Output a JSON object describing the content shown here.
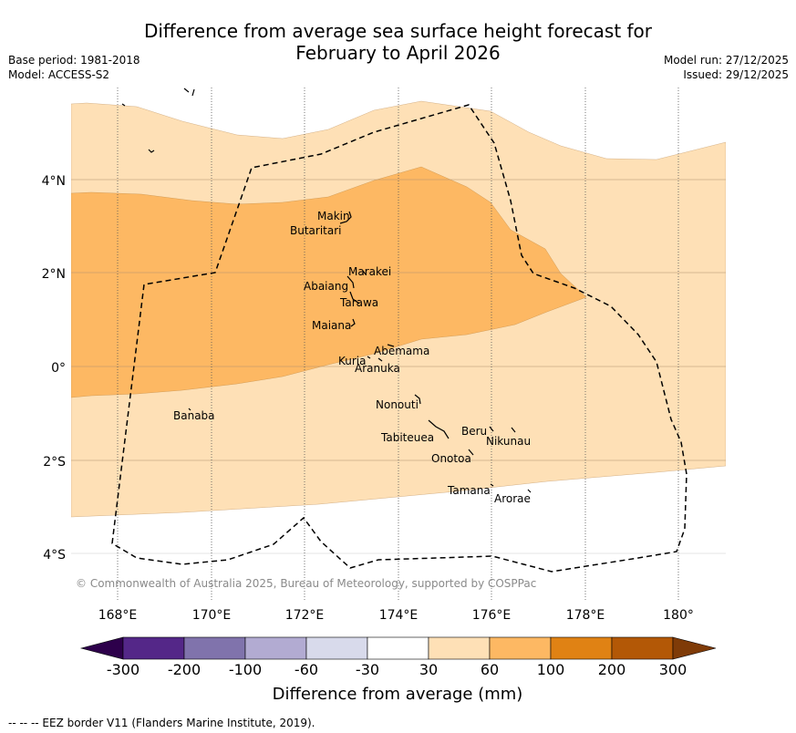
{
  "title_line1": "Difference from average sea surface height forecast for",
  "title_line2": "February to April 2026",
  "base_period": "Base period: 1981-2018",
  "model": "Model: ACCESS-S2",
  "model_run": "Model run: 27/12/2025",
  "issued": "Issued: 29/12/2025",
  "copyright": "© Commonwealth of Australia 2025, Bureau of Meteorology, supported by COSPPac",
  "x_ticks": [
    "168°E",
    "170°E",
    "172°E",
    "174°E",
    "176°E",
    "178°E",
    "180°"
  ],
  "y_ticks": [
    "4°N",
    "2°N",
    "0°",
    "2°S",
    "4°S"
  ],
  "places": {
    "makin": "Makin",
    "butaritari": "Butaritari",
    "marakei": "Marakei",
    "abaiang": "Abaiang",
    "tarawa": "Tarawa",
    "maiana": "Maiana",
    "abemama": "Abemama",
    "kuria": "Kuria",
    "aranuka": "Aranuka",
    "nonouti": "Nonouti",
    "banaba": "Banaba",
    "tabiteuea": "Tabiteuea",
    "beru": "Beru",
    "nikunau": "Nikunau",
    "onotoa": "Onotoa",
    "tamana": "Tamana",
    "arorae": "Arorae"
  },
  "colorbar": {
    "ticks": [
      "-300",
      "-200",
      "-100",
      "-60",
      "-30",
      "30",
      "60",
      "100",
      "200",
      "300"
    ],
    "colors": {
      "below_min": "#2d004b",
      "n300_200": "#542788",
      "n200_100": "#8073ac",
      "n100_60": "#b2abd2",
      "n60_30": "#d8daeb",
      "n30_30": "#ffffff",
      "p30_60": "#fee0b6",
      "p60_100": "#fdb863",
      "p100_200": "#e08214",
      "p200_300": "#b35806",
      "above_max": "#7f3b08"
    },
    "label": "Difference from average (mm)"
  },
  "footer": "--  --  -- EEZ border V11 (Flanders Marine Institute, 2019)."
}
